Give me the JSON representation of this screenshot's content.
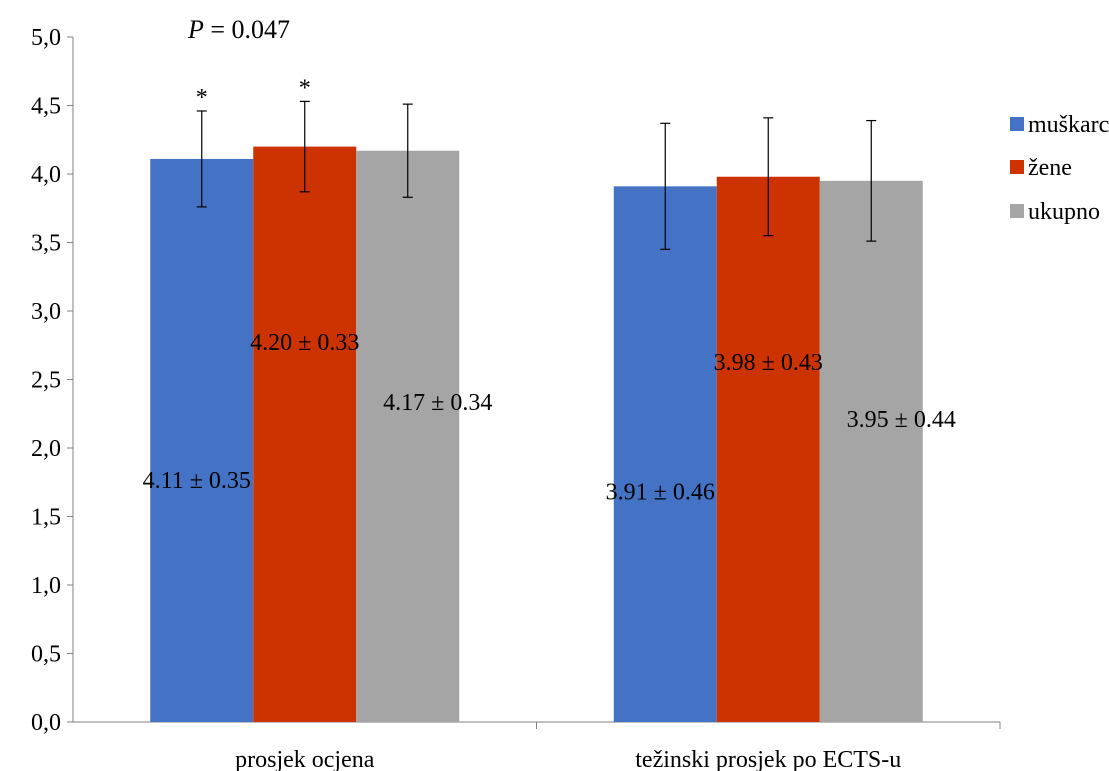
{
  "chart_data": {
    "type": "bar",
    "categories": [
      "prosjek ocjena",
      "težinski prosjek po ECTS-u"
    ],
    "series": [
      {
        "name": "muškarci",
        "color": "#4472C4",
        "values": [
          4.11,
          3.91
        ],
        "errors": [
          0.35,
          0.46
        ],
        "labels": [
          "4.11 ± 0.35",
          "3.91 ± 0.46"
        ]
      },
      {
        "name": "žene",
        "color": "#CC3300",
        "values": [
          4.2,
          3.98
        ],
        "errors": [
          0.33,
          0.43
        ],
        "labels": [
          "4.20 ± 0.33",
          "3.98 ± 0.43"
        ]
      },
      {
        "name": "ukupno",
        "color": "#A5A5A5",
        "values": [
          4.17,
          3.95
        ],
        "errors": [
          0.34,
          0.44
        ],
        "labels": [
          "4.17 ± 0.34",
          "3.95 ± 0.44"
        ]
      }
    ],
    "ylim": [
      0,
      5
    ],
    "yticks": [
      "0,0",
      "0,5",
      "1,0",
      "1,5",
      "2,0",
      "2,5",
      "3,0",
      "3,5",
      "4,0",
      "4,5",
      "5,0"
    ],
    "legend_position": "right",
    "annotations": {
      "p_italic": "P",
      "p_value": " = 0.047",
      "significance_marker": "*"
    },
    "grid": false
  }
}
